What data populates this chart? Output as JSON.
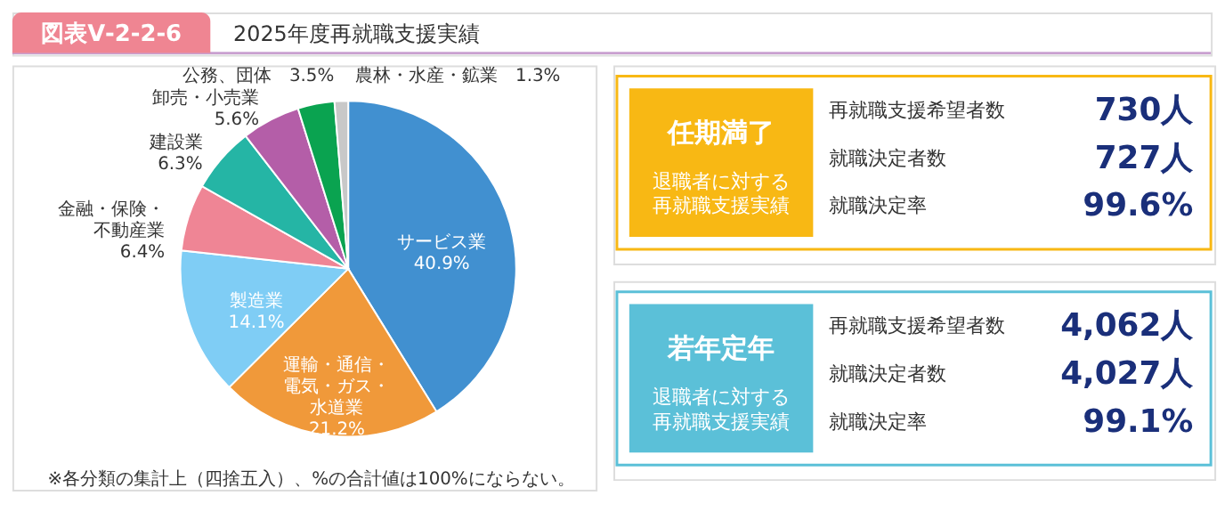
{
  "chart_data": [
    {
      "type": "pie",
      "title": "2025年度再就職支援実績",
      "categories": [
        "サービス業",
        "運輸・通信・電気・ガス・水道業",
        "製造業",
        "金融・保険・不動産業",
        "建設業",
        "卸売・小売業",
        "公務、団体",
        "農林・水産・鉱業"
      ],
      "values": [
        40.9,
        21.2,
        14.1,
        6.4,
        6.3,
        5.6,
        3.5,
        1.3
      ],
      "value_labels": [
        "40.9%",
        "21.2%",
        "14.1%",
        "6.4%",
        "6.3%",
        "5.6%",
        "3.5%",
        "1.3%"
      ],
      "colors": [
        "#4190d0",
        "#f0993a",
        "#7fcdf5",
        "#ef8595",
        "#25b5a5",
        "#b45ea8",
        "#0aa350",
        "#c8c8c8"
      ],
      "annotations": [
        "図表Ⅴ-2-2-6",
        "※各分類の集計上（四捨五入）、%の合計値は100%にならない。"
      ]
    },
    {
      "type": "other",
      "title": "任期満了",
      "subtitle": "退職者に対する再就職支援実績",
      "color": "#f8b814",
      "categories": [
        "再就職支援希望者数",
        "就職決定者数",
        "就職決定率"
      ],
      "value_labels": [
        "730人",
        "727人",
        "99.6%"
      ]
    },
    {
      "type": "other",
      "title": "若年定年",
      "subtitle": "退職者に対する再就職支援実績",
      "color": "#5bc0d8",
      "categories": [
        "再就職支援希望者数",
        "就職決定者数",
        "就職決定率"
      ],
      "value_labels": [
        "4,062人",
        "4,027人",
        "99.1%"
      ]
    }
  ]
}
